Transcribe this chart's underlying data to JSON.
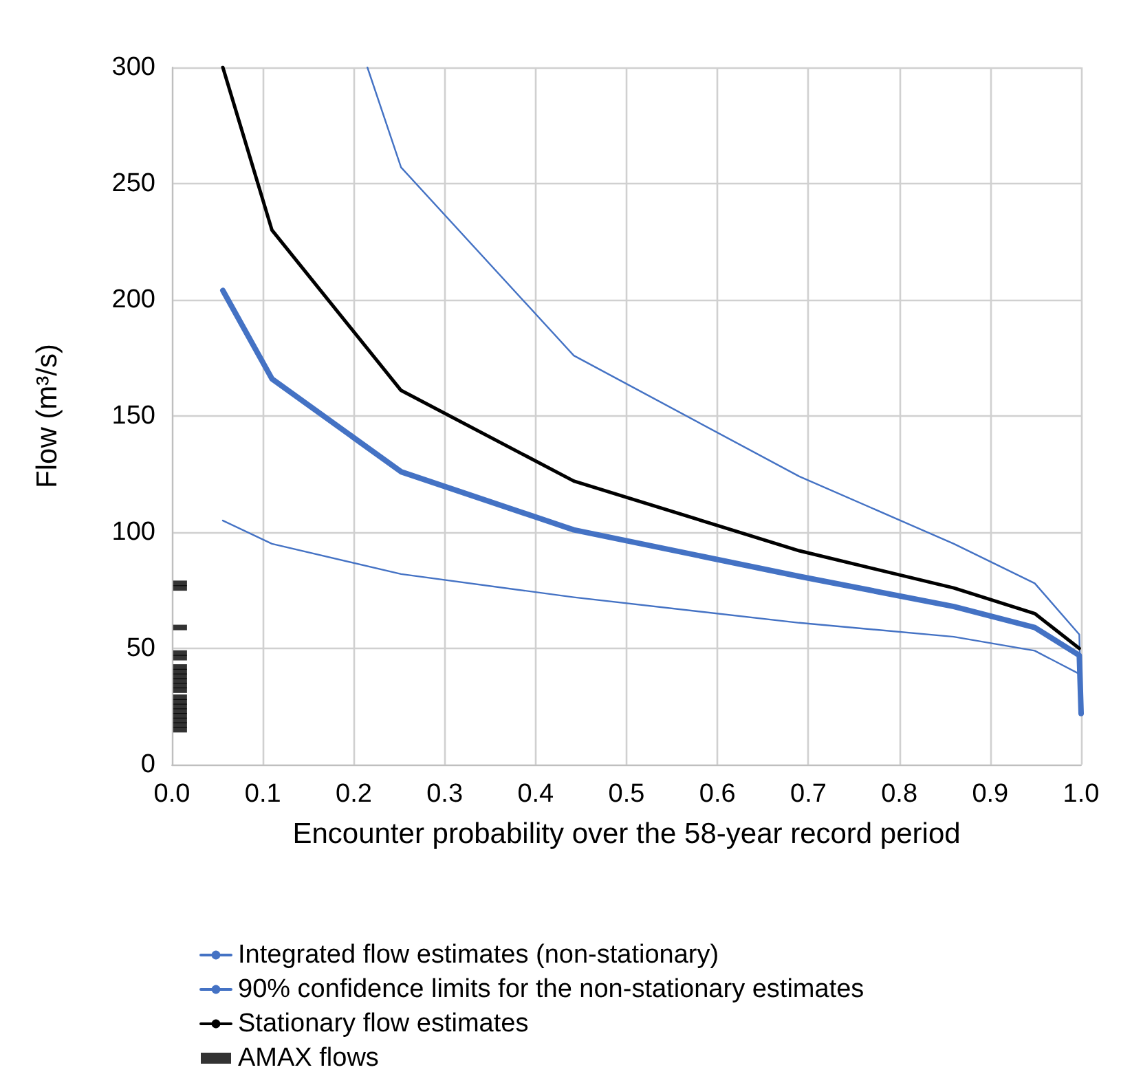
{
  "chart_data": {
    "type": "line",
    "xlabel": "Encounter probability over the 58-year record period",
    "ylabel": "Flow (m³/s)",
    "xlim": [
      0,
      1
    ],
    "ylim": [
      0,
      300
    ],
    "xticks": [
      {
        "value": 0,
        "label": "0.0"
      },
      {
        "value": 0.1,
        "label": "0.1"
      },
      {
        "value": 0.2,
        "label": "0.2"
      },
      {
        "value": 0.3,
        "label": "0.3"
      },
      {
        "value": 0.4,
        "label": "0.4"
      },
      {
        "value": 0.5,
        "label": "0.5"
      },
      {
        "value": 0.6,
        "label": "0.6"
      },
      {
        "value": 0.7,
        "label": "0.7"
      },
      {
        "value": 0.8,
        "label": "0.8"
      },
      {
        "value": 0.9,
        "label": "0.9"
      },
      {
        "value": 1,
        "label": "1.0"
      }
    ],
    "yticks": [
      0,
      50,
      100,
      150,
      200,
      250,
      300
    ],
    "grid": true,
    "legend": "bottom",
    "marker": "none",
    "line_style": "solid",
    "series": [
      {
        "name": "Integrated flow estimates (non-stationary)",
        "color": "#4472c4",
        "x": [
          0.056,
          0.11,
          0.252,
          0.442,
          0.69,
          0.86,
          0.949,
          0.998,
          1.0
        ],
        "values": [
          204,
          166,
          126,
          101,
          81,
          68,
          59,
          47,
          22
        ]
      },
      {
        "name": "90% confidence limits for the non-stationary estimates",
        "color": "#4472c4",
        "x": [
          0.215,
          0.252,
          0.442,
          0.69,
          0.86,
          0.949,
          0.998,
          1.0
        ],
        "values": [
          300,
          257,
          176,
          124,
          95,
          78,
          56,
          22
        ]
      },
      {
        "color": "#4472c4",
        "x": [
          0.056,
          0.11,
          0.252,
          0.442,
          0.69,
          0.86,
          0.949,
          0.998,
          1.0
        ],
        "values": [
          105,
          95,
          82,
          72,
          61,
          55,
          49,
          39,
          22
        ]
      },
      {
        "name": "Stationary flow estimates",
        "color": "#000000",
        "x": [
          0.056,
          0.11,
          0.252,
          0.442,
          0.69,
          0.86,
          0.949,
          0.998
        ],
        "values": [
          300,
          230,
          161,
          122,
          92,
          76,
          65,
          50
        ]
      },
      {
        "name": "AMAX flows",
        "type": "scatter",
        "marker": "square",
        "color": "#000000",
        "x": [
          0.009,
          0.009,
          0.009,
          0.009,
          0.009,
          0.009,
          0.009,
          0.009,
          0.009,
          0.009,
          0.009,
          0.009,
          0.009,
          0.009,
          0.009,
          0.009,
          0.009,
          0.009,
          0.009
        ],
        "values": [
          78,
          76,
          59,
          48,
          46,
          42,
          40,
          38,
          36,
          34,
          32,
          29,
          27,
          25,
          23,
          21,
          19,
          17,
          15
        ]
      }
    ]
  }
}
